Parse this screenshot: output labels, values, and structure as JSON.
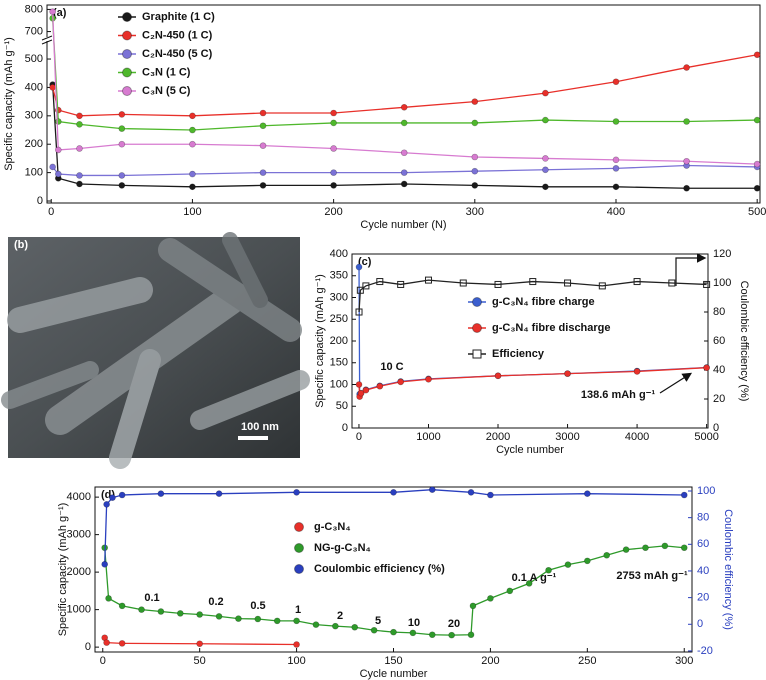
{
  "chart_data": [
    {
      "type": "line",
      "panel_label": "(a)",
      "xlabel": "Cycle number (N)",
      "ylabel": "Specific capacity (mAh g⁻¹)",
      "xlim": [
        -3,
        502
      ],
      "xticks": [
        0,
        100,
        200,
        300,
        400,
        500
      ],
      "ylim": [
        -7,
        560
      ],
      "yticks": [
        0,
        100,
        200,
        300,
        400,
        500
      ],
      "upper_ylim": [
        680,
        820
      ],
      "upper_yticks": [
        700,
        800
      ],
      "series": [
        {
          "name": "Graphite (1 C)",
          "color": "#1a1a1a",
          "marker": "circle",
          "x": [
            1,
            5,
            20,
            50,
            100,
            150,
            200,
            250,
            300,
            350,
            400,
            450,
            500
          ],
          "values": [
            410,
            80,
            60,
            55,
            50,
            55,
            55,
            60,
            55,
            50,
            50,
            45,
            45
          ]
        },
        {
          "name": "C₂N-450 (1 C)",
          "color": "#e8302a",
          "marker": "circle",
          "x": [
            1,
            5,
            20,
            50,
            100,
            150,
            200,
            250,
            300,
            350,
            400,
            450,
            500
          ],
          "values": [
            400,
            320,
            300,
            305,
            300,
            310,
            310,
            330,
            350,
            380,
            420,
            470,
            515
          ]
        },
        {
          "name": "C₂N-450 (5 C)",
          "color": "#7b72d6",
          "marker": "circle",
          "x": [
            1,
            5,
            20,
            50,
            100,
            150,
            200,
            250,
            300,
            350,
            400,
            450,
            500
          ],
          "values": [
            120,
            95,
            90,
            90,
            95,
            100,
            100,
            100,
            105,
            110,
            115,
            125,
            120
          ]
        },
        {
          "name": "C₃N (1 C)",
          "color": "#4fb82c",
          "marker": "circle",
          "x": [
            1,
            5,
            20,
            50,
            100,
            150,
            200,
            250,
            300,
            350,
            400,
            450,
            500
          ],
          "values": [
            760,
            280,
            270,
            255,
            250,
            265,
            275,
            275,
            275,
            285,
            280,
            280,
            285
          ]
        },
        {
          "name": "C₃N (5 C)",
          "color": "#d77bd0",
          "marker": "circle",
          "x": [
            1,
            5,
            20,
            50,
            100,
            150,
            200,
            250,
            300,
            350,
            400,
            450,
            500
          ],
          "values": [
            790,
            180,
            185,
            200,
            200,
            195,
            185,
            170,
            155,
            150,
            145,
            140,
            130
          ]
        }
      ],
      "annotations": []
    },
    {
      "type": "line",
      "panel_label": "(c)",
      "xlabel": "Cycle number",
      "ylabel": "Specific capacity (mAh g⁻¹)",
      "y2label": "Coulombic efficiency (%)",
      "xlim": [
        -100,
        5020
      ],
      "xticks": [
        0,
        1000,
        2000,
        3000,
        4000,
        5000
      ],
      "ylim": [
        0,
        400
      ],
      "yticks": [
        0,
        50,
        100,
        150,
        200,
        250,
        300,
        350,
        400
      ],
      "y2lim": [
        0,
        120
      ],
      "y2ticks": [
        0,
        20,
        40,
        60,
        80,
        100,
        120
      ],
      "series": [
        {
          "name": "g-C₃N₄ fibre charge",
          "color": "#3b5fcf",
          "marker": "circle",
          "x": [
            1,
            10,
            30,
            100,
            300,
            600,
            1000,
            2000,
            3000,
            4000,
            5000
          ],
          "values": [
            370,
            78,
            80,
            88,
            97,
            107,
            113,
            120,
            125,
            131,
            139
          ]
        },
        {
          "name": "g-C₃N₄ fibre discharge",
          "color": "#e8302a",
          "marker": "circle",
          "x": [
            1,
            10,
            30,
            100,
            300,
            600,
            1000,
            2000,
            3000,
            4000,
            5000
          ],
          "values": [
            100,
            72,
            80,
            87,
            96,
            106,
            112,
            120,
            125,
            130,
            138.6
          ]
        },
        {
          "name": "Efficiency",
          "color": "#222222",
          "marker": "square-open",
          "axis": "y2",
          "x": [
            1,
            20,
            100,
            300,
            600,
            1000,
            1500,
            2000,
            2500,
            3000,
            3500,
            4000,
            4500,
            5000
          ],
          "values": [
            80,
            95,
            98,
            101,
            99,
            102,
            100,
            99,
            101,
            100,
            98,
            101,
            100,
            99
          ]
        }
      ],
      "annotations": [
        "10 C",
        "138.6 mAh g⁻¹"
      ]
    },
    {
      "type": "line",
      "panel_label": "(d)",
      "xlabel": "Cycle number",
      "ylabel": "Specific capacity (mAh g⁻¹)",
      "y2label": "Coulombic efficiency (%)",
      "y2_color": "#2a3fbf",
      "xlim": [
        -4,
        304
      ],
      "xticks": [
        0,
        50,
        100,
        150,
        200,
        250,
        300
      ],
      "ylim": [
        -130,
        4270
      ],
      "yticks": [
        0,
        1000,
        2000,
        3000,
        4000
      ],
      "y2lim": [
        -20.8,
        103
      ],
      "y2ticks": [
        -20,
        0,
        20,
        40,
        60,
        80,
        100
      ],
      "series": [
        {
          "name": "g-C₃N₄",
          "color": "#e8302a",
          "marker": "circle",
          "x": [
            1,
            2,
            10,
            50,
            100
          ],
          "values": [
            250,
            120,
            100,
            90,
            70
          ]
        },
        {
          "name": "NG-g-C₃N₄",
          "color": "#2e9a2a",
          "marker": "circle",
          "x": [
            1,
            3,
            10,
            20,
            30,
            40,
            50,
            60,
            70,
            80,
            90,
            100,
            110,
            120,
            130,
            140,
            150,
            160,
            170,
            180,
            190,
            191,
            200,
            210,
            220,
            230,
            240,
            250,
            260,
            270,
            280,
            290,
            300
          ],
          "values": [
            2650,
            1300,
            1100,
            1000,
            950,
            900,
            870,
            820,
            760,
            750,
            700,
            700,
            600,
            560,
            530,
            450,
            400,
            380,
            330,
            320,
            330,
            1100,
            1300,
            1500,
            1700,
            2050,
            2200,
            2300,
            2450,
            2600,
            2650,
            2700,
            2650
          ]
        },
        {
          "name": "Coulombic efficiency (%)",
          "color": "#2a3fbf",
          "marker": "circle",
          "axis": "y2",
          "x": [
            1,
            2,
            5,
            10,
            30,
            60,
            100,
            150,
            170,
            190,
            200,
            250,
            300
          ],
          "values": [
            45,
            90,
            95,
            97,
            98,
            98,
            99,
            99,
            101,
            99,
            97,
            98,
            97
          ]
        }
      ],
      "annotations": [
        "0.1",
        "0.2",
        "0.5",
        "1",
        "2",
        "5",
        "10",
        "20",
        "0.1 A g⁻¹",
        "2753 mAh g⁻¹"
      ]
    }
  ],
  "image_panel": {
    "panel_label": "(b)",
    "scale_bar": "100 nm"
  }
}
